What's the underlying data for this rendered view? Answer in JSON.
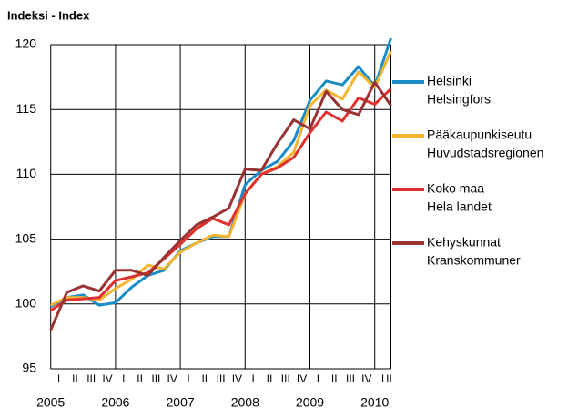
{
  "chart_data": {
    "type": "line",
    "title": "Indeksi - Index",
    "categories": [
      "I",
      "II",
      "III",
      "IV",
      "I",
      "II",
      "III",
      "IV",
      "I",
      "II",
      "III",
      "IV",
      "I",
      "II",
      "III",
      "IV",
      "I",
      "II",
      "III",
      "IV",
      "I",
      "II"
    ],
    "year_labels": [
      "2005",
      "2006",
      "2007",
      "2008",
      "2009",
      "2010"
    ],
    "ylim": [
      95,
      120
    ],
    "yticks": [
      95,
      100,
      105,
      110,
      115,
      120
    ],
    "grid": true,
    "legend": "right",
    "series": [
      {
        "name": [
          "Helsinki",
          "Helsingfors"
        ],
        "color": "#1a8cc8",
        "values": [
          99.8,
          100.5,
          100.7,
          99.9,
          100.1,
          101.3,
          102.2,
          102.6,
          104.1,
          104.7,
          105.2,
          105.2,
          109.2,
          110.3,
          111.0,
          112.6,
          115.7,
          117.2,
          116.9,
          118.3,
          116.8,
          120.5
        ]
      },
      {
        "name": [
          "Pääkaupunkiseutu",
          "Huvudstadsregionen"
        ],
        "color": "#f5b52e",
        "values": [
          99.9,
          100.5,
          100.5,
          100.3,
          101.2,
          101.9,
          103.0,
          102.7,
          104.0,
          104.7,
          105.3,
          105.2,
          108.5,
          110.0,
          110.6,
          111.7,
          115.3,
          116.5,
          115.8,
          117.9,
          116.7,
          119.5
        ]
      },
      {
        "name": [
          "Koko maa",
          "Hela landet"
        ],
        "color": "#e03030",
        "values": [
          99.5,
          100.3,
          100.4,
          100.5,
          101.8,
          102.1,
          102.4,
          103.5,
          104.6,
          105.8,
          106.6,
          106.1,
          108.5,
          110.0,
          110.5,
          111.3,
          113.2,
          114.8,
          114.1,
          115.9,
          115.4,
          116.6
        ]
      },
      {
        "name": [
          "Kehyskunnat",
          "Kranskommuner"
        ],
        "color": "#993333",
        "values": [
          98.0,
          100.9,
          101.4,
          101.0,
          102.6,
          102.6,
          102.2,
          103.6,
          104.9,
          106.1,
          106.7,
          107.4,
          110.4,
          110.3,
          112.4,
          114.2,
          113.5,
          116.4,
          115.0,
          114.6,
          117.1,
          115.3
        ]
      }
    ]
  }
}
